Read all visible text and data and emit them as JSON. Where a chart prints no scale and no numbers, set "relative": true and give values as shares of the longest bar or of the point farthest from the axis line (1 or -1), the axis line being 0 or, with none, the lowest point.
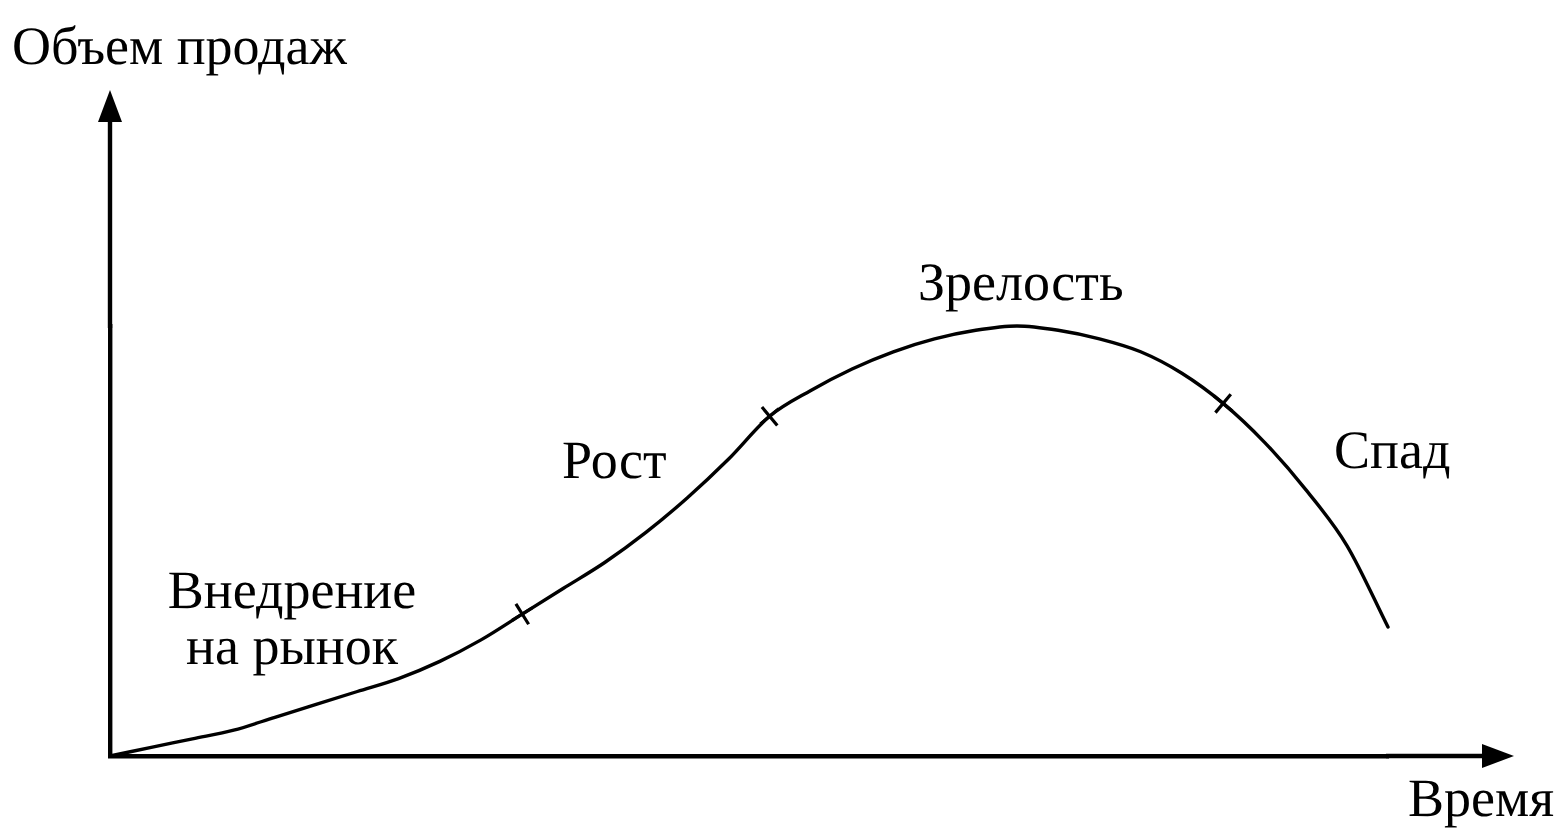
{
  "chart_data": {
    "type": "line",
    "relative": true,
    "xlabel": "Время",
    "ylabel": "Объем продаж",
    "annotations": [
      "Внедрение на рынок",
      "Рост",
      "Зрелость",
      "Спад"
    ],
    "categories": [
      null,
      null,
      null,
      null,
      null,
      null,
      null,
      null,
      null,
      null,
      null,
      null,
      null,
      null,
      null,
      null,
      null,
      null,
      null,
      null,
      null,
      null,
      null,
      null,
      null,
      null,
      null,
      null,
      null,
      null,
      null,
      null
    ],
    "series": [
      {
        "color": "#000000",
        "values": [
          0,
          0.02,
          0.04,
          0.06,
          0.09,
          0.12,
          0.15,
          0.18,
          0.22,
          0.27,
          0.33,
          0.39,
          0.45,
          0.52,
          0.6,
          0.69,
          0.79,
          0.85,
          0.9,
          0.94,
          0.97,
          0.99,
          1,
          0.99,
          0.97,
          0.94,
          0.89,
          0.82,
          0.73,
          0.62,
          0.49,
          0.3
        ]
      },
      {
        "color": "#000000",
        "marker": "cross",
        "values": [
          null,
          null,
          null,
          null,
          null,
          null,
          null,
          null,
          null,
          null,
          0.33,
          null,
          null,
          null,
          null,
          null,
          0.79,
          null,
          null,
          null,
          null,
          null,
          null,
          null,
          null,
          null,
          null,
          0.82,
          null,
          null,
          null,
          null
        ]
      }
    ]
  }
}
